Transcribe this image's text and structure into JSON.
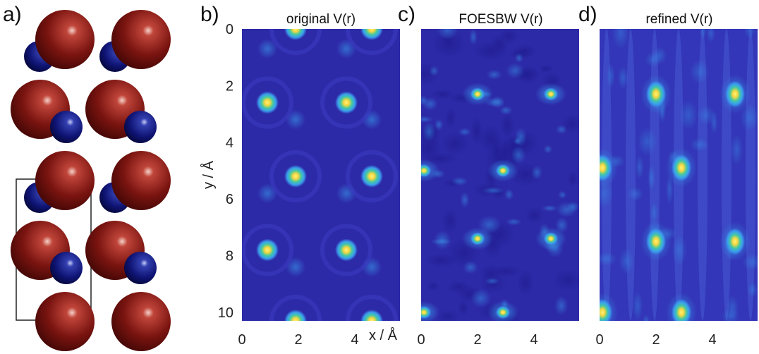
{
  "panels": {
    "a": {
      "label": "a)"
    },
    "b": {
      "label": "b)",
      "title": "original V(r)"
    },
    "c": {
      "label": "c)",
      "title": "FOESBW V(r)"
    },
    "d": {
      "label": "d)",
      "title": "refined V(r)"
    }
  },
  "axes": {
    "xlabel": "x / Å",
    "ylabel": "y / Å",
    "x_ticks": [
      "0",
      "2",
      "4"
    ],
    "x_tick_values": [
      0,
      2,
      4
    ],
    "y_ticks": [
      "0",
      "2",
      "4",
      "6",
      "8",
      "10"
    ],
    "y_tick_values": [
      0,
      2,
      4,
      6,
      8,
      10
    ],
    "x_range": [
      0,
      5.6
    ],
    "y_range": [
      0,
      10.3
    ]
  },
  "colors": {
    "background": "#2d2aa8",
    "bright": "#f5d640",
    "cyan": "#3aa0ee",
    "atom_large": "#7a1410",
    "atom_small": "#0f1474"
  },
  "chart_data": [
    {
      "type": "heatmap",
      "title": "original V(r)",
      "peaks_xy": [
        [
          1.9,
          0
        ],
        [
          4.6,
          0
        ],
        [
          0.9,
          2.6
        ],
        [
          3.7,
          2.6
        ],
        [
          1.9,
          5.2
        ],
        [
          4.6,
          5.2
        ],
        [
          0.9,
          7.8
        ],
        [
          3.7,
          7.8
        ],
        [
          1.9,
          10.3
        ],
        [
          4.6,
          10.3
        ]
      ],
      "xlabel": "x / Å",
      "ylabel": "y / Å",
      "xlim": [
        0,
        5.6
      ],
      "ylim": [
        0,
        10.3
      ]
    },
    {
      "type": "heatmap",
      "title": "FOESBW V(r)",
      "peaks_xy": [
        [
          2.0,
          2.3
        ],
        [
          4.6,
          2.3
        ],
        [
          0.1,
          5.0
        ],
        [
          2.9,
          5.0
        ],
        [
          2.0,
          7.4
        ],
        [
          4.6,
          7.4
        ],
        [
          0.1,
          10.0
        ],
        [
          2.9,
          10.0
        ]
      ],
      "xlabel": "x / Å",
      "xlim": [
        0,
        5.6
      ],
      "ylim": [
        0,
        10.3
      ]
    },
    {
      "type": "heatmap",
      "title": "refined V(r)",
      "peaks_xy": [
        [
          2.0,
          2.3
        ],
        [
          4.8,
          2.3
        ],
        [
          0.1,
          4.9
        ],
        [
          2.9,
          4.9
        ],
        [
          2.0,
          7.5
        ],
        [
          4.8,
          7.5
        ],
        [
          0.1,
          10.0
        ],
        [
          2.9,
          10.0
        ]
      ],
      "xlabel": "x / Å",
      "xlim": [
        0,
        5.6
      ],
      "ylim": [
        0,
        10.3
      ]
    }
  ]
}
